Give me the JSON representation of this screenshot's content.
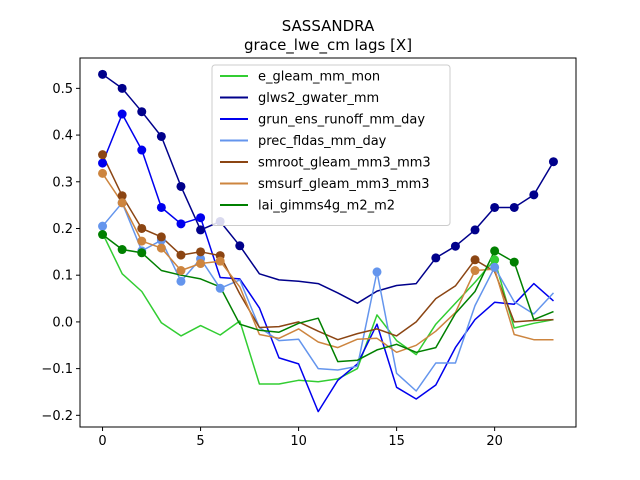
{
  "chart_data": {
    "type": "line",
    "title": "SASSANDRA",
    "subtitle": "grace_lwe_cm lags [X]",
    "xlim": [
      -1.15,
      24.15
    ],
    "ylim": [
      -0.225,
      0.565
    ],
    "xticks": [
      0,
      5,
      10,
      15,
      20
    ],
    "yticks": [
      -0.2,
      -0.1,
      0.0,
      0.1,
      0.2,
      0.3,
      0.4,
      0.5
    ],
    "ytick_labels": [
      "−0.2",
      "−0.1",
      "0.0",
      "0.1",
      "0.2",
      "0.3",
      "0.4",
      "0.5"
    ],
    "legend_position": "top-center",
    "grid": false,
    "x": [
      0,
      1,
      2,
      3,
      4,
      5,
      6,
      7,
      8,
      9,
      10,
      11,
      12,
      13,
      14,
      15,
      16,
      17,
      18,
      19,
      20,
      21,
      22,
      23
    ],
    "series": [
      {
        "name": "e_gleam_mm_mon",
        "color": "#32cd32",
        "values": [
          0.19,
          0.103,
          0.065,
          -0.002,
          -0.03,
          -0.008,
          -0.028,
          0.002,
          -0.133,
          -0.133,
          -0.125,
          -0.128,
          -0.122,
          -0.1,
          0.015,
          -0.04,
          -0.07,
          -0.005,
          0.04,
          0.085,
          0.133,
          -0.013,
          -0.003,
          0.005
        ],
        "markers": [
          20
        ]
      },
      {
        "name": "glws2_gwater_mm",
        "color": "#00008b",
        "values": [
          0.53,
          0.5,
          0.45,
          0.397,
          0.29,
          0.197,
          0.215,
          0.163,
          0.103,
          0.09,
          0.087,
          0.082,
          0.062,
          0.04,
          0.066,
          0.078,
          0.082,
          0.137,
          0.162,
          0.197,
          0.245,
          0.245,
          0.272,
          0.343
        ],
        "markers": [
          0,
          1,
          2,
          3,
          4,
          5,
          6,
          7,
          17,
          18,
          19,
          20,
          21,
          22,
          23
        ]
      },
      {
        "name": "grun_ens_runoff_mm_day",
        "color": "#0000ee",
        "values": [
          0.34,
          0.445,
          0.368,
          0.245,
          0.21,
          0.223,
          0.095,
          0.092,
          0.03,
          -0.077,
          -0.09,
          -0.192,
          -0.125,
          -0.09,
          -0.005,
          -0.14,
          -0.165,
          -0.135,
          -0.055,
          0.005,
          0.042,
          0.038,
          0.082,
          0.045
        ],
        "markers": [
          0,
          1,
          2,
          3,
          4,
          5
        ]
      },
      {
        "name": "prec_fldas_mm_day",
        "color": "#6495ed",
        "values": [
          0.205,
          0.255,
          0.152,
          0.175,
          0.087,
          0.135,
          0.072,
          0.09,
          -0.012,
          -0.04,
          -0.037,
          -0.1,
          -0.103,
          -0.095,
          0.107,
          -0.11,
          -0.148,
          -0.088,
          -0.088,
          0.035,
          0.117,
          0.043,
          0.017,
          0.062
        ],
        "markers": [
          0,
          1,
          2,
          3,
          4,
          5,
          6,
          14,
          20
        ]
      },
      {
        "name": "smroot_gleam_mm3_mm3",
        "color": "#8b4513",
        "values": [
          0.358,
          0.27,
          0.2,
          0.182,
          0.143,
          0.15,
          0.142,
          0.06,
          -0.012,
          -0.01,
          0.0,
          -0.02,
          -0.038,
          -0.025,
          -0.015,
          -0.03,
          0.0,
          0.05,
          0.077,
          0.133,
          0.108,
          0.0,
          0.003,
          0.005
        ],
        "markers": [
          0,
          1,
          2,
          3,
          4,
          5,
          6,
          19
        ]
      },
      {
        "name": "smsurf_gleam_mm3_mm3",
        "color": "#cd853f",
        "values": [
          0.318,
          0.255,
          0.173,
          0.158,
          0.11,
          0.125,
          0.13,
          0.075,
          -0.027,
          -0.035,
          -0.015,
          -0.043,
          -0.055,
          -0.037,
          -0.035,
          -0.065,
          -0.05,
          -0.02,
          0.02,
          0.11,
          0.113,
          -0.027,
          -0.038,
          -0.038
        ],
        "markers": [
          0,
          1,
          2,
          3,
          4,
          5,
          6,
          19
        ]
      },
      {
        "name": "lai_gimms4g_m2_m2",
        "color": "#008000",
        "values": [
          0.187,
          0.155,
          0.148,
          0.11,
          0.1,
          0.092,
          0.075,
          -0.005,
          -0.018,
          -0.022,
          -0.003,
          0.008,
          -0.085,
          -0.082,
          -0.06,
          -0.048,
          -0.065,
          -0.055,
          0.018,
          0.065,
          0.152,
          0.128,
          0.005,
          0.022
        ],
        "markers": [
          0,
          1,
          2,
          20,
          21
        ]
      }
    ]
  }
}
